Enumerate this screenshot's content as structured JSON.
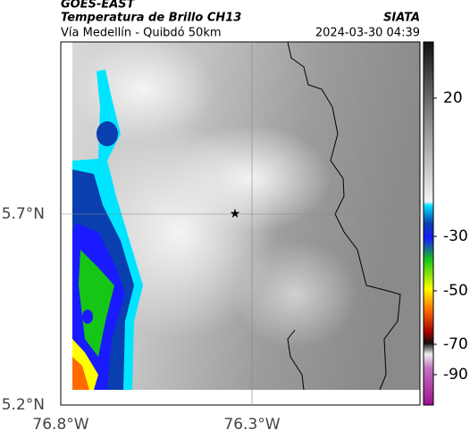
{
  "header": {
    "satellite": "GOES-EAST",
    "product": "Temperatura de Brillo CH13",
    "source": "SIATA",
    "route": "Vía Medellín - Quibdó 50km",
    "datetime": "2024-03-30 04:39"
  },
  "map": {
    "lat_ticks": [
      "5.7°N",
      "5.2°N"
    ],
    "lon_ticks": [
      "76.8°W",
      "76.3°W"
    ]
  },
  "colorbar": {
    "ticks": [
      "20",
      "-30",
      "-50",
      "-70",
      "-90"
    ]
  }
}
